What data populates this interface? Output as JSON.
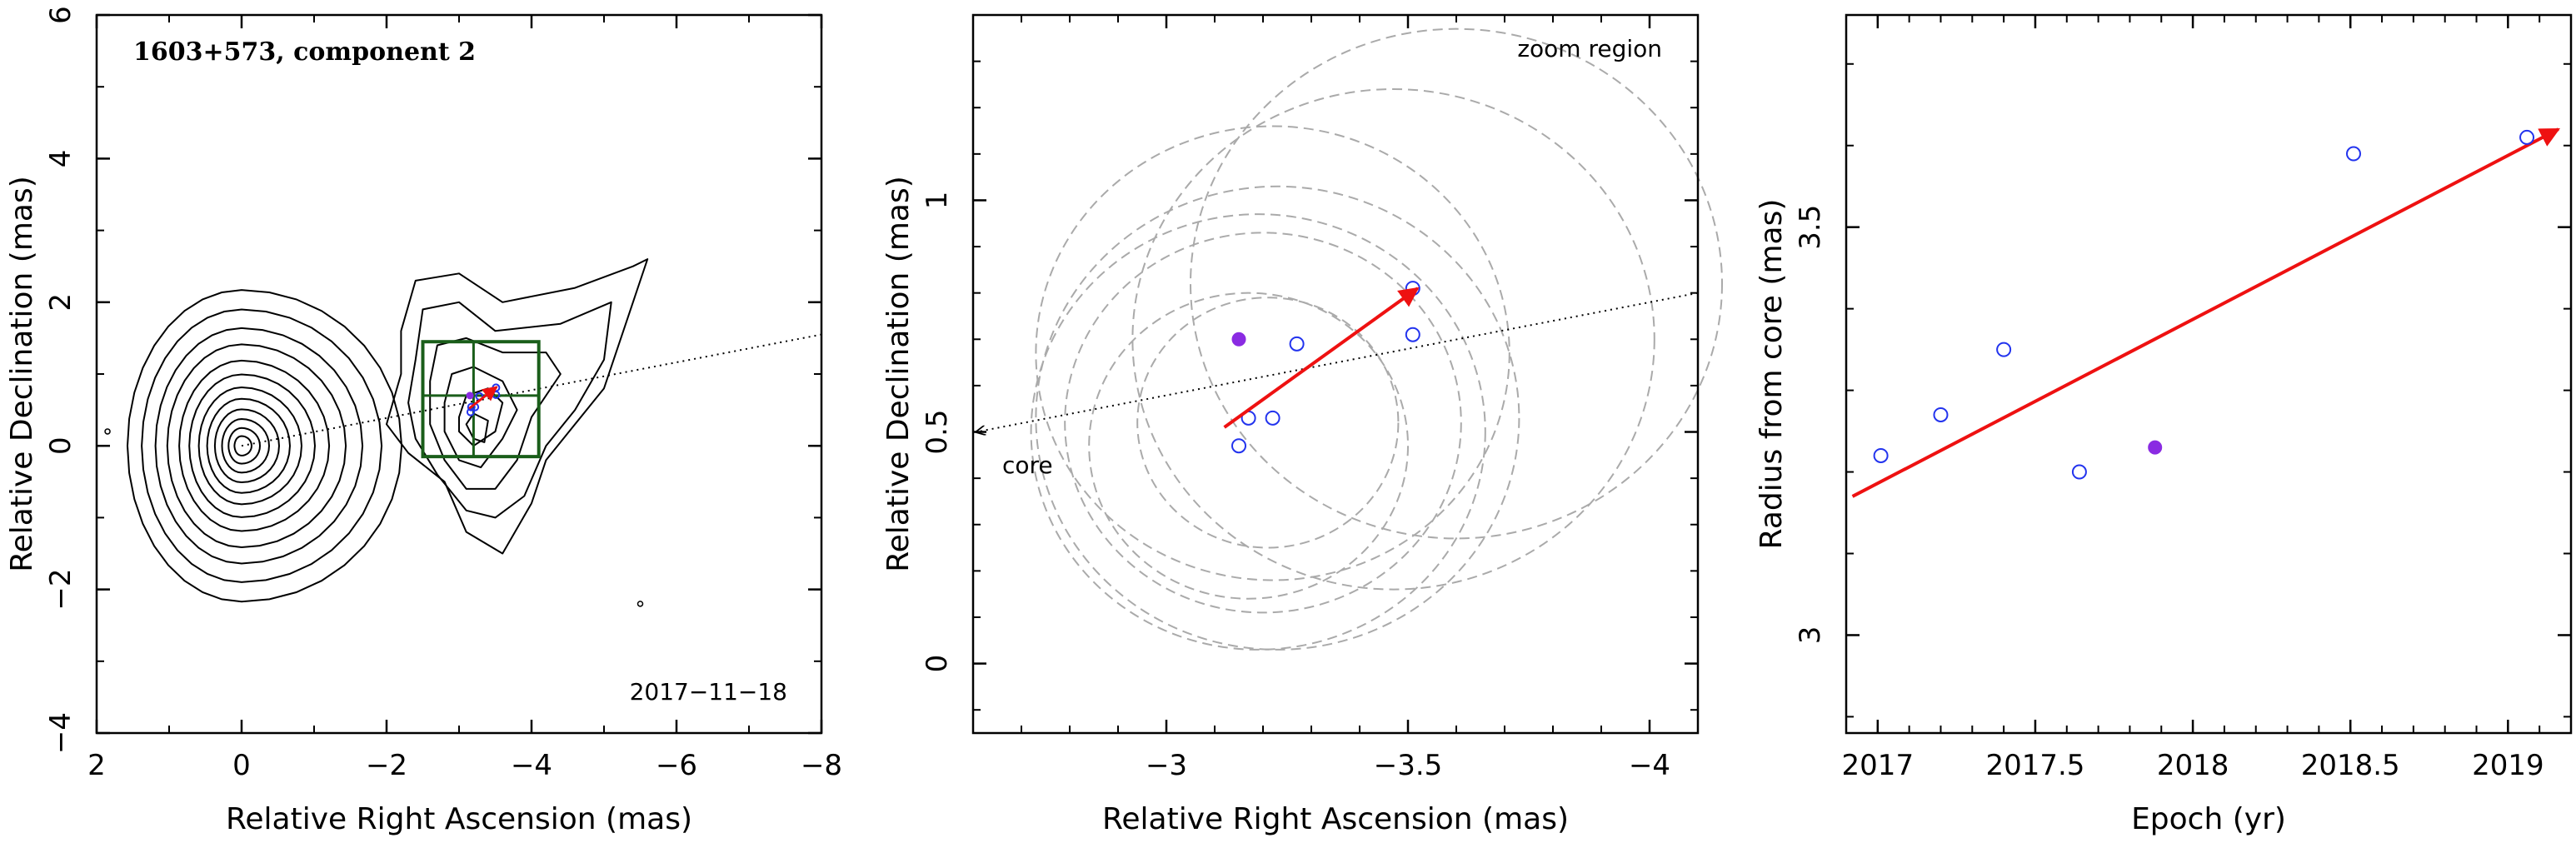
{
  "colors": {
    "axis": "#000000",
    "contour": "#000000",
    "arrow": "#ee1111",
    "open_marker": "#2233ee",
    "filled_marker": "#8a2be2",
    "dashed_circle": "#aaaaaa",
    "zoom_box": "#1a5e1a",
    "dotted_line": "#000000"
  },
  "chart_data": [
    {
      "type": "contour",
      "title": "1603+573, component 2",
      "date_label": "2017−11−18",
      "xlabel": "Relative Right Ascension (mas)",
      "ylabel": "Relative Declination (mas)",
      "xlim": [
        2,
        -8
      ],
      "ylim": [
        -4,
        6
      ],
      "xticks": [
        2,
        0,
        -2,
        -4,
        -6,
        -8
      ],
      "xtick_labels": [
        "2",
        "0",
        "−2",
        "−4",
        "−6",
        "−8"
      ],
      "yticks": [
        -4,
        -2,
        0,
        2,
        4,
        6
      ],
      "ytick_labels": [
        "−4",
        "−2",
        "0",
        "2",
        "4",
        "6"
      ],
      "core_position": [
        0,
        0
      ],
      "core_contour_levels": [
        0.12,
        0.22,
        0.33,
        0.45,
        0.58,
        0.72,
        0.88,
        1.05,
        1.25,
        1.45,
        1.68,
        1.92
      ],
      "jet_contours": [
        [
          [
            -2.2,
            1.6
          ],
          [
            -2.4,
            2.3
          ],
          [
            -3.0,
            2.4
          ],
          [
            -3.6,
            2.0
          ],
          [
            -4.6,
            2.2
          ],
          [
            -5.4,
            2.5
          ],
          [
            -5.6,
            2.6
          ],
          [
            -5.3,
            1.7
          ],
          [
            -5.0,
            0.8
          ],
          [
            -4.6,
            0.3
          ],
          [
            -4.2,
            -0.2
          ],
          [
            -4.0,
            -0.8
          ],
          [
            -3.6,
            -1.5
          ],
          [
            -3.1,
            -1.2
          ],
          [
            -2.8,
            -0.5
          ],
          [
            -2.3,
            -0.1
          ],
          [
            -2.0,
            0.3
          ],
          [
            -2.2,
            1.0
          ],
          [
            -2.2,
            1.6
          ]
        ],
        [
          [
            -2.4,
            1.2
          ],
          [
            -2.5,
            1.9
          ],
          [
            -3.0,
            2.0
          ],
          [
            -3.5,
            1.6
          ],
          [
            -4.4,
            1.7
          ],
          [
            -5.1,
            2.0
          ],
          [
            -5.0,
            1.2
          ],
          [
            -4.6,
            0.5
          ],
          [
            -4.2,
            0.0
          ],
          [
            -3.9,
            -0.7
          ],
          [
            -3.5,
            -1.0
          ],
          [
            -3.1,
            -0.9
          ],
          [
            -2.7,
            -0.4
          ],
          [
            -2.4,
            0.1
          ],
          [
            -2.3,
            0.6
          ],
          [
            -2.4,
            1.2
          ]
        ],
        [
          [
            -2.6,
            0.9
          ],
          [
            -2.7,
            1.4
          ],
          [
            -3.1,
            1.5
          ],
          [
            -3.6,
            1.3
          ],
          [
            -4.2,
            1.3
          ],
          [
            -4.4,
            1.0
          ],
          [
            -4.0,
            0.4
          ],
          [
            -3.8,
            -0.2
          ],
          [
            -3.5,
            -0.6
          ],
          [
            -3.1,
            -0.6
          ],
          [
            -2.8,
            -0.2
          ],
          [
            -2.6,
            0.3
          ],
          [
            -2.6,
            0.9
          ]
        ],
        [
          [
            -2.8,
            0.6
          ],
          [
            -2.9,
            1.0
          ],
          [
            -3.2,
            1.1
          ],
          [
            -3.6,
            0.9
          ],
          [
            -3.8,
            0.5
          ],
          [
            -3.6,
            0.1
          ],
          [
            -3.3,
            -0.3
          ],
          [
            -3.0,
            -0.2
          ],
          [
            -2.8,
            0.2
          ],
          [
            -2.8,
            0.6
          ]
        ],
        [
          [
            -3.0,
            0.4
          ],
          [
            -3.1,
            0.7
          ],
          [
            -3.4,
            0.8
          ],
          [
            -3.6,
            0.6
          ],
          [
            -3.5,
            0.2
          ],
          [
            -3.2,
            0.0
          ],
          [
            -3.0,
            0.2
          ],
          [
            -3.0,
            0.4
          ]
        ],
        [
          [
            -3.2,
            0.1
          ],
          [
            -3.1,
            0.3
          ],
          [
            -3.2,
            0.45
          ],
          [
            -3.4,
            0.35
          ],
          [
            -3.35,
            0.05
          ],
          [
            -3.2,
            0.1
          ]
        ]
      ],
      "zoom_box": {
        "ra": [
          -2.5,
          -4.1
        ],
        "dec": [
          -0.15,
          1.45
        ],
        "ra_center": -3.2,
        "dec_center": 0.7
      },
      "pa_line": {
        "from": [
          0,
          0
        ],
        "to": [
          -8,
          1.55
        ]
      },
      "arrow": {
        "from": [
          -3.14,
          0.52
        ],
        "to": [
          -3.52,
          0.82
        ]
      },
      "markers_open": [
        [
          -3.16,
          0.47
        ],
        [
          -3.17,
          0.54
        ],
        [
          -3.22,
          0.54
        ],
        [
          -3.28,
          0.69
        ],
        [
          -3.51,
          0.71
        ],
        [
          -3.51,
          0.81
        ]
      ],
      "markers_filled": [
        [
          -3.15,
          0.7
        ]
      ],
      "stray_marks": [
        [
          1.85,
          0.2
        ],
        [
          -5.5,
          -2.2
        ]
      ]
    },
    {
      "type": "scatter",
      "xlabel": "Relative Right Ascension (mas)",
      "ylabel": "Relative Declination (mas)",
      "xlim": [
        -2.6,
        -4.1
      ],
      "ylim": [
        -0.15,
        1.4
      ],
      "xticks": [
        -3,
        -3.5,
        -4
      ],
      "xtick_labels": [
        "−3",
        "−3.5",
        "−4"
      ],
      "yticks": [
        0,
        0.5,
        1
      ],
      "ytick_labels": [
        "0",
        "0.5",
        "1"
      ],
      "zoom_label": "zoom region",
      "core_label": "core",
      "pa_line": {
        "from": [
          -2.6,
          0.5
        ],
        "to": [
          -4.1,
          0.8
        ]
      },
      "dashed_circles": [
        {
          "center": [
            -3.2,
            0.52
          ],
          "radius": 0.41
        },
        {
          "center": [
            -3.19,
            0.5
          ],
          "radius": 0.47
        },
        {
          "center": [
            -3.23,
            0.53
          ],
          "radius": 0.5
        },
        {
          "center": [
            -3.22,
            0.67
          ],
          "radius": 0.49
        },
        {
          "center": [
            -3.47,
            0.7
          ],
          "radius": 0.54
        },
        {
          "center": [
            -3.6,
            0.82
          ],
          "radius": 0.55
        },
        {
          "center": [
            -3.17,
            0.47
          ],
          "radius": 0.33
        },
        {
          "center": [
            -3.21,
            0.52
          ],
          "radius": 0.27
        }
      ],
      "arrow": {
        "from": [
          -3.12,
          0.51
        ],
        "to": [
          -3.52,
          0.81
        ]
      },
      "markers_open": [
        [
          -3.15,
          0.47
        ],
        [
          -3.17,
          0.53
        ],
        [
          -3.22,
          0.53
        ],
        [
          -3.27,
          0.69
        ],
        [
          -3.51,
          0.71
        ],
        [
          -3.51,
          0.81
        ]
      ],
      "markers_filled": [
        [
          -3.15,
          0.7
        ]
      ]
    },
    {
      "type": "scatter",
      "xlabel": "Epoch (yr)",
      "ylabel": "Radius from core (mas)",
      "xlim": [
        2016.9,
        2019.2
      ],
      "ylim": [
        2.88,
        3.76
      ],
      "xticks": [
        2017,
        2017.5,
        2018,
        2018.5,
        2019
      ],
      "xtick_labels": [
        "2017",
        "2017.5",
        "2018",
        "2018.5",
        "2019"
      ],
      "yticks": [
        3,
        3.5
      ],
      "ytick_labels": [
        "3",
        "3.5"
      ],
      "series": [
        {
          "epochs": [
            2017.01,
            2017.2,
            2017.4,
            2017.64,
            2018.51,
            2019.06
          ],
          "values": [
            3.22,
            3.27,
            3.35,
            3.2,
            3.59,
            3.61
          ]
        },
        {
          "epochs": [
            2017.88
          ],
          "values": [
            3.23
          ]
        }
      ],
      "fit_arrow": {
        "from": [
          2016.92,
          3.17
        ],
        "to": [
          2019.16,
          3.62
        ]
      }
    }
  ]
}
